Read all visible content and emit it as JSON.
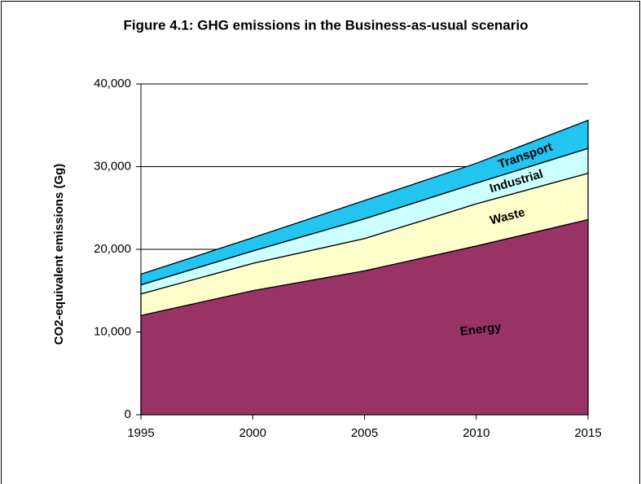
{
  "chart_data": {
    "type": "stacked_area",
    "title": "Figure 4.1: GHG emissions in the Business-as-usual scenario",
    "y_label": "CO2-equivalent emissions (Gg)",
    "x": [
      1995,
      2000,
      2005,
      2010,
      2015
    ],
    "xlim": [
      1995,
      2015
    ],
    "xticks": [
      1995,
      2000,
      2005,
      2010,
      2015
    ],
    "ylim": [
      0,
      40000
    ],
    "yticks": [
      0,
      {
        "value": 10000,
        "label": "10,000"
      },
      {
        "value": 20000,
        "label": "20,000"
      },
      {
        "value": 30000,
        "label": "30,000"
      },
      {
        "value": 40000,
        "label": "40,000"
      }
    ],
    "grid": true,
    "series": [
      {
        "name": "Energy",
        "color": "#993366",
        "values": [
          12000,
          15000,
          17400,
          20400,
          23600
        ]
      },
      {
        "name": "Waste",
        "color": "#FFFFCC",
        "values": [
          2600,
          3300,
          3900,
          5100,
          5600
        ]
      },
      {
        "name": "Industrial",
        "color": "#CCFFFF",
        "values": [
          1100,
          1500,
          2400,
          2500,
          3000
        ]
      },
      {
        "name": "Transport",
        "color": "#22C4F2",
        "values": [
          1300,
          1600,
          2200,
          2400,
          3400
        ]
      }
    ]
  }
}
